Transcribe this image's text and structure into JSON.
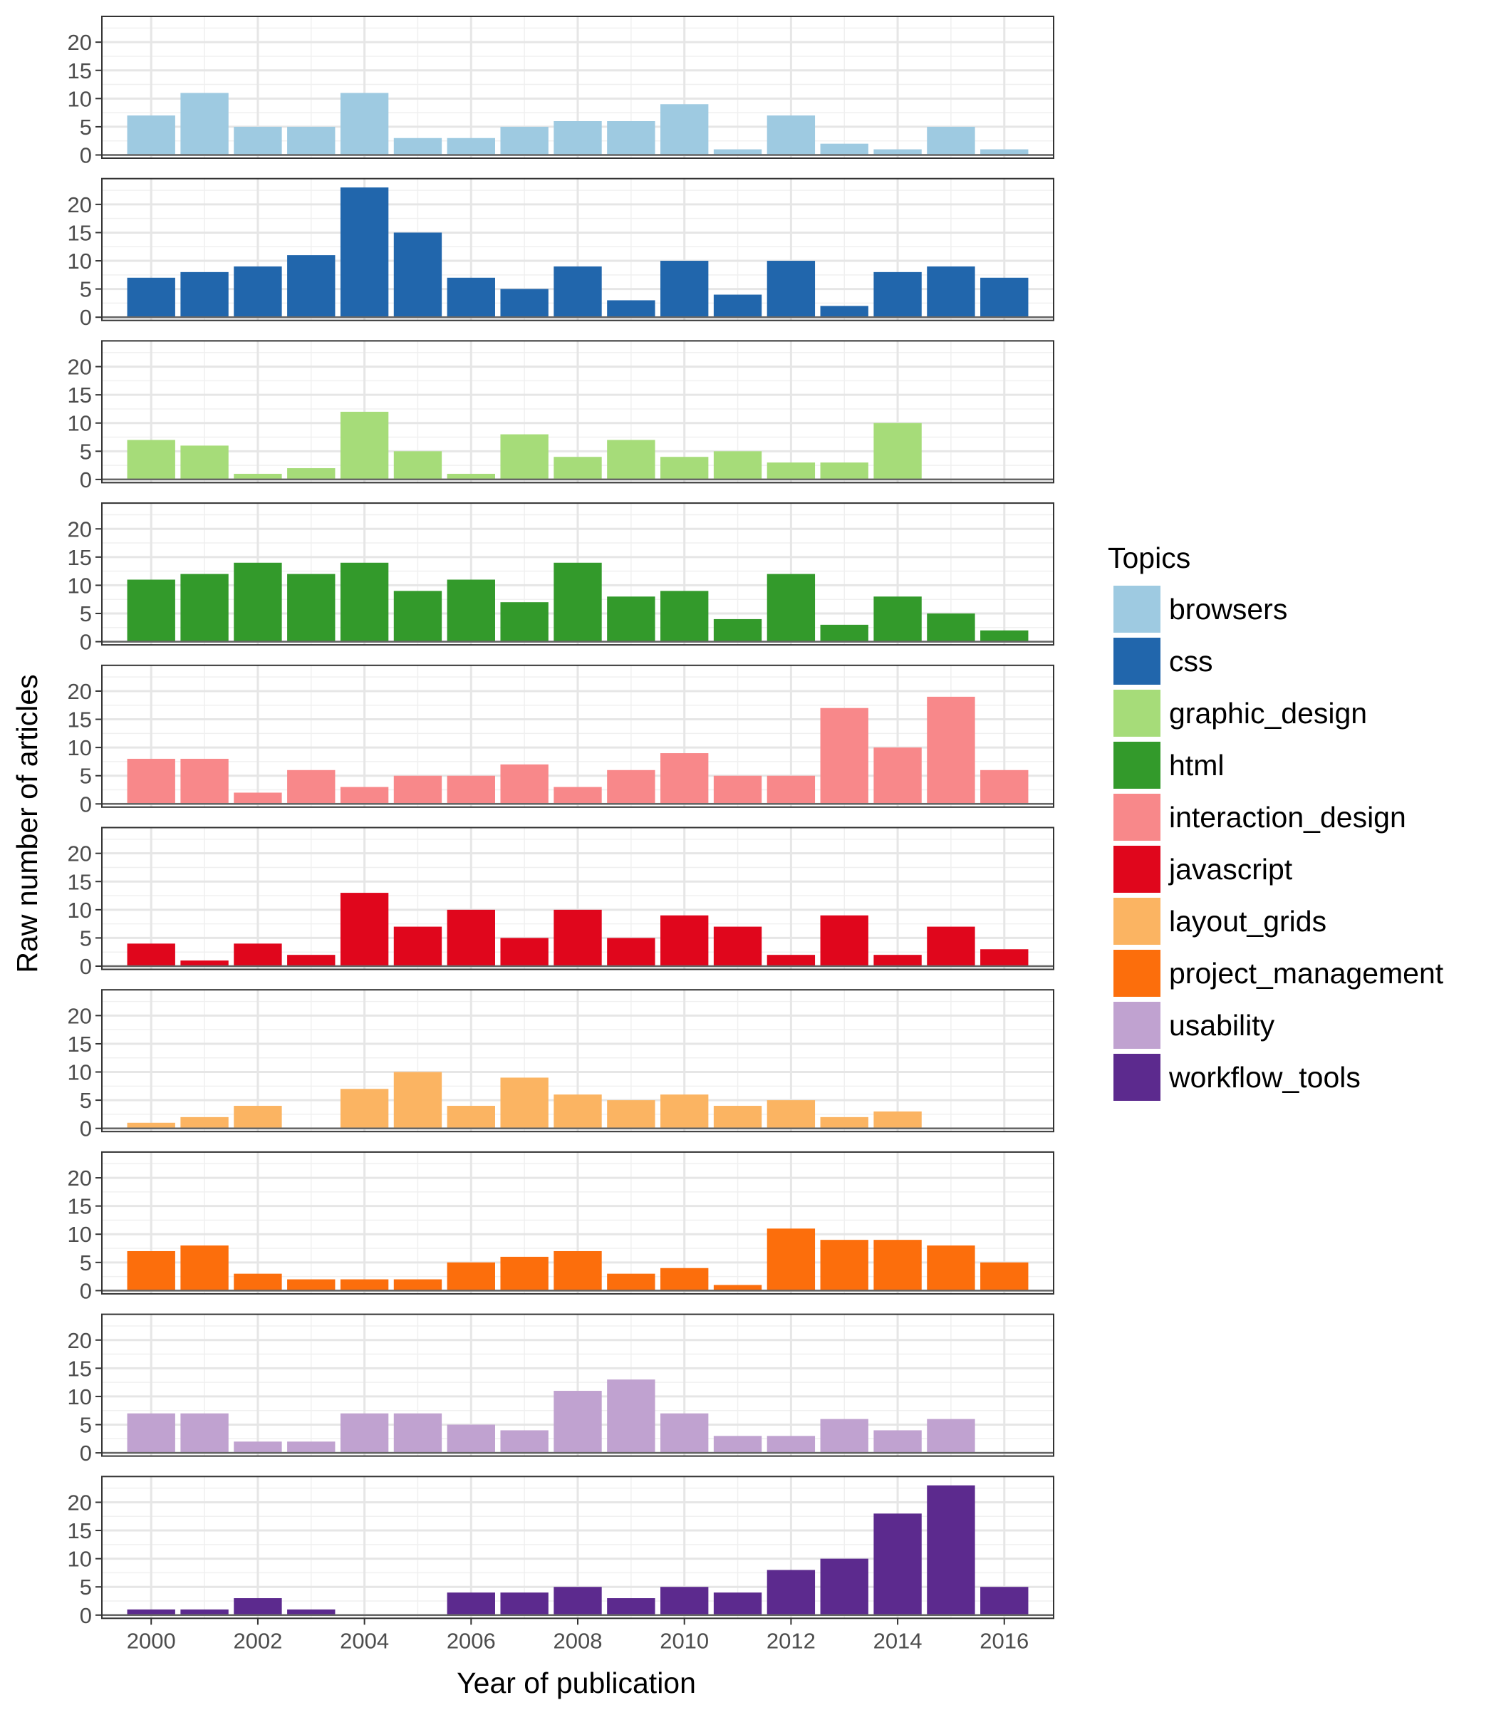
{
  "chart_data": {
    "type": "bar",
    "layout": "small-multiples",
    "xlabel": "Year of publication",
    "ylabel": "Raw number of articles",
    "x": [
      2000,
      2001,
      2002,
      2003,
      2004,
      2005,
      2006,
      2007,
      2008,
      2009,
      2010,
      2011,
      2012,
      2013,
      2014,
      2015,
      2016
    ],
    "x_ticks": [
      "2000",
      "2002",
      "2004",
      "2006",
      "2008",
      "2010",
      "2012",
      "2014",
      "2016"
    ],
    "y_ticks": [
      "0",
      "5",
      "10",
      "15",
      "20"
    ],
    "ylim": [
      0,
      24
    ],
    "grid": true,
    "legend": {
      "title": "Topics",
      "placement": "right"
    },
    "series": [
      {
        "name": "browsers",
        "color": "#9ecae1",
        "values": [
          7,
          11,
          5,
          5,
          11,
          3,
          3,
          5,
          6,
          6,
          9,
          1,
          7,
          2,
          1,
          5,
          1
        ]
      },
      {
        "name": "css",
        "color": "#2166ac",
        "values": [
          7,
          8,
          9,
          11,
          23,
          15,
          7,
          5,
          9,
          3,
          10,
          4,
          10,
          2,
          8,
          9,
          7
        ]
      },
      {
        "name": "graphic_design",
        "color": "#a6dc79",
        "values": [
          7,
          6,
          1,
          2,
          12,
          5,
          1,
          8,
          4,
          7,
          4,
          5,
          3,
          3,
          10,
          null,
          null
        ]
      },
      {
        "name": "html",
        "color": "#339a2b",
        "values": [
          11,
          12,
          14,
          12,
          14,
          9,
          11,
          7,
          14,
          8,
          9,
          4,
          12,
          3,
          8,
          5,
          2
        ]
      },
      {
        "name": "interaction_design",
        "color": "#f8888a",
        "values": [
          8,
          8,
          2,
          6,
          3,
          5,
          5,
          7,
          3,
          6,
          9,
          5,
          5,
          17,
          10,
          19,
          6
        ]
      },
      {
        "name": "javascript",
        "color": "#e0061c",
        "values": [
          4,
          1,
          4,
          2,
          13,
          7,
          10,
          5,
          10,
          5,
          9,
          7,
          2,
          9,
          2,
          7,
          3
        ]
      },
      {
        "name": "layout_grids",
        "color": "#fbb462",
        "values": [
          1,
          2,
          4,
          null,
          7,
          10,
          4,
          9,
          6,
          5,
          6,
          4,
          5,
          2,
          3,
          null,
          null
        ]
      },
      {
        "name": "project_management",
        "color": "#fc6e0c",
        "values": [
          7,
          8,
          3,
          2,
          2,
          2,
          5,
          6,
          7,
          3,
          4,
          1,
          11,
          9,
          9,
          8,
          5
        ]
      },
      {
        "name": "usability",
        "color": "#c0a2d0",
        "values": [
          7,
          7,
          2,
          2,
          7,
          7,
          5,
          4,
          11,
          13,
          7,
          3,
          3,
          6,
          4,
          6,
          null
        ]
      },
      {
        "name": "workflow_tools",
        "color": "#5c2a8e",
        "values": [
          1,
          1,
          3,
          1,
          null,
          null,
          4,
          4,
          5,
          3,
          5,
          4,
          8,
          10,
          18,
          23,
          5
        ]
      }
    ]
  }
}
